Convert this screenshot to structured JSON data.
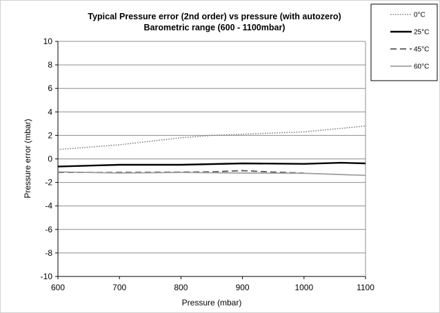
{
  "chart_data": {
    "type": "line",
    "title": "Typical Pressure error (2nd order) vs pressure (with autozero)",
    "subtitle": "Barometric range (600 - 1100mbar)",
    "xlabel": "Pressure (mbar)",
    "ylabel": "Pressure error (mbar)",
    "xlim": [
      600,
      1100
    ],
    "ylim": [
      -10,
      10
    ],
    "xticks": [
      600,
      700,
      800,
      900,
      1000,
      1100
    ],
    "yticks": [
      10,
      8,
      6,
      4,
      2,
      0,
      -2,
      -4,
      -6,
      -8,
      -10
    ],
    "grid": "horizontal",
    "legend_position": "top-right",
    "series": [
      {
        "name": "0°C",
        "style": "dotted",
        "color": "#7a7a7a",
        "x": [
          600,
          700,
          800,
          850,
          900,
          1000,
          1100
        ],
        "y": [
          0.8,
          1.2,
          1.8,
          2.0,
          2.1,
          2.3,
          2.8
        ]
      },
      {
        "name": "25°C",
        "style": "solid",
        "color": "#000000",
        "x": [
          600,
          700,
          800,
          900,
          1000,
          1060,
          1100
        ],
        "y": [
          -0.65,
          -0.5,
          -0.5,
          -0.38,
          -0.42,
          -0.33,
          -0.38
        ]
      },
      {
        "name": "45°C",
        "style": "dashed",
        "color": "#555555",
        "x": [
          600,
          700,
          800,
          850,
          900,
          950,
          1000
        ],
        "y": [
          -1.15,
          -1.15,
          -1.12,
          -1.1,
          -1.0,
          -1.12,
          -1.2
        ]
      },
      {
        "name": "60°C",
        "style": "solid-light",
        "color": "#a0a0a0",
        "x": [
          600,
          700,
          800,
          900,
          1000,
          1100
        ],
        "y": [
          -1.1,
          -1.2,
          -1.15,
          -1.2,
          -1.22,
          -1.4
        ]
      }
    ]
  }
}
